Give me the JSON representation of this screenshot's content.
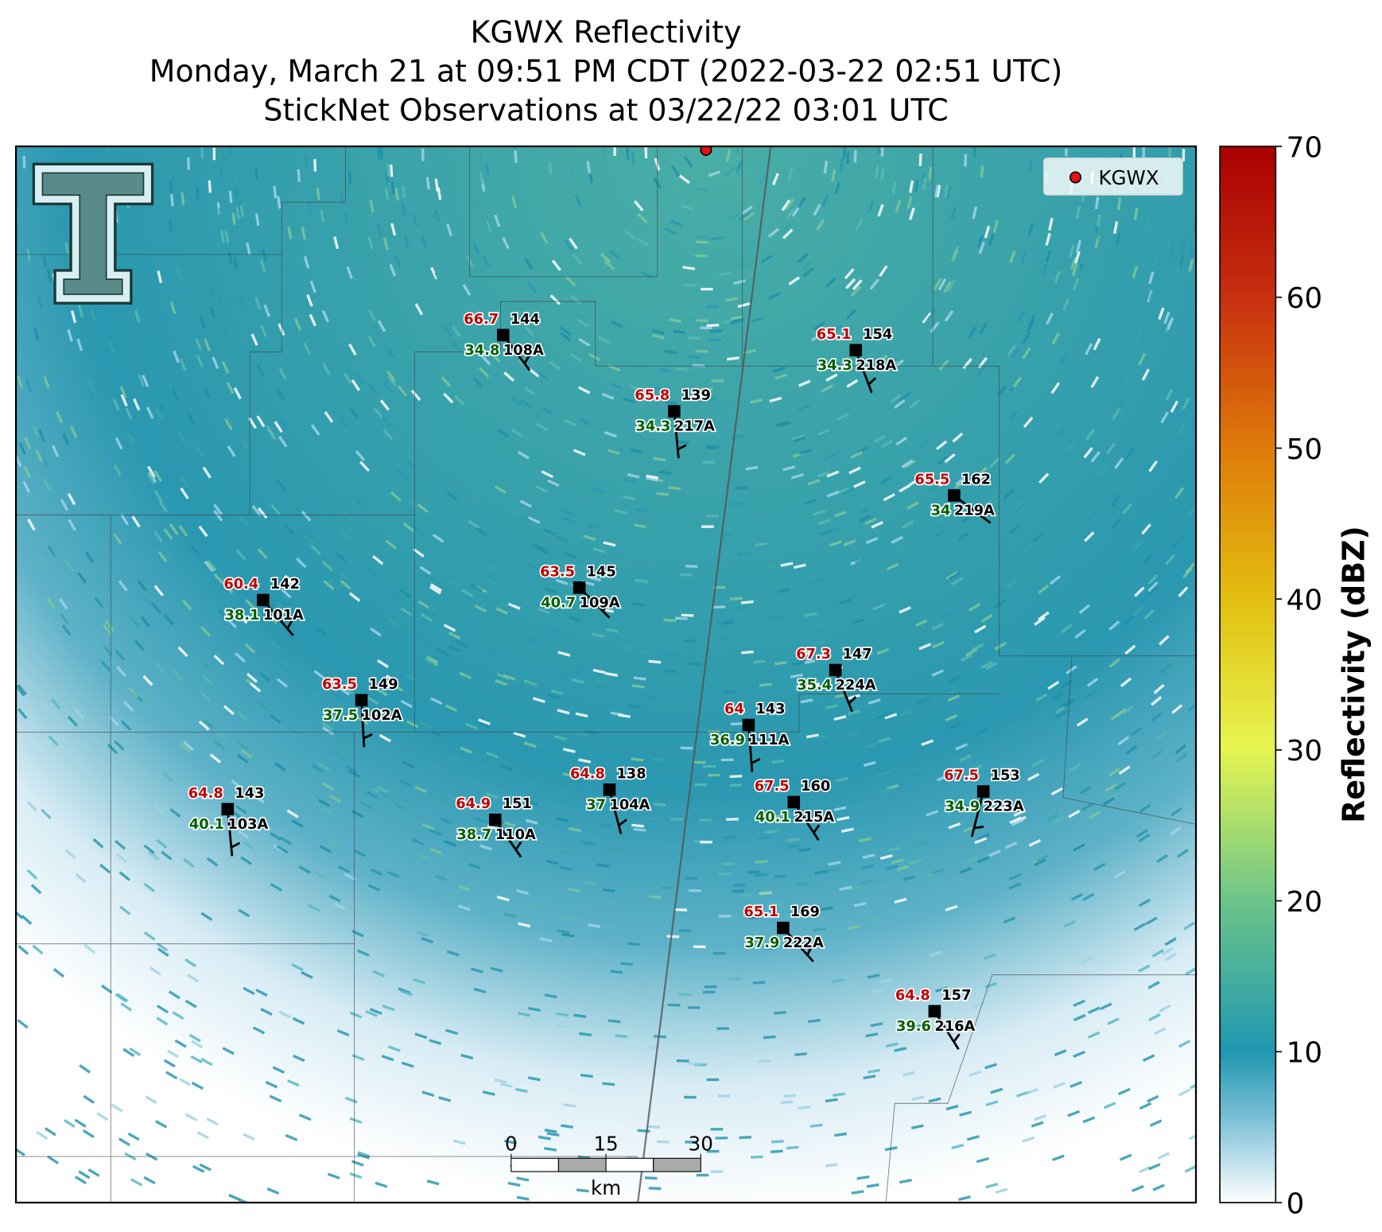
{
  "title_lines": [
    "KGWX Reflectivity",
    "Monday, March 21 at 09:51 PM CDT (2022-03-22 02:51 UTC)",
    "StickNet Observations at 03/22/22 03:01 UTC"
  ],
  "legend": {
    "label": "KGWX"
  },
  "stations": [
    {
      "id": "108A",
      "temperature": 66.7,
      "dewpoint": 34.8,
      "value": 144
    },
    {
      "id": "217A",
      "temperature": 65.8,
      "dewpoint": 34.3,
      "value": 139
    },
    {
      "id": "218A",
      "temperature": 65.1,
      "dewpoint": 34.3,
      "value": 154
    },
    {
      "id": "219A",
      "temperature": 65.5,
      "dewpoint": 34.0,
      "value": 162
    },
    {
      "id": "109A",
      "temperature": 63.5,
      "dewpoint": 40.7,
      "value": 145
    },
    {
      "id": "101A",
      "temperature": 60.4,
      "dewpoint": 38.1,
      "value": 142
    },
    {
      "id": "224A",
      "temperature": 67.3,
      "dewpoint": 35.4,
      "value": 147
    },
    {
      "id": "102A",
      "temperature": 63.5,
      "dewpoint": 37.5,
      "value": 149
    },
    {
      "id": "111A",
      "temperature": 64.0,
      "dewpoint": 36.9,
      "value": 143
    },
    {
      "id": "104A",
      "temperature": 64.8,
      "dewpoint": 37.0,
      "value": 138
    },
    {
      "id": "215A",
      "temperature": 67.5,
      "dewpoint": 40.1,
      "value": 160
    },
    {
      "id": "223A",
      "temperature": 67.5,
      "dewpoint": 34.9,
      "value": 153
    },
    {
      "id": "103A",
      "temperature": 64.8,
      "dewpoint": 40.1,
      "value": 143
    },
    {
      "id": "110A",
      "temperature": 64.9,
      "dewpoint": 38.7,
      "value": 151
    },
    {
      "id": "222A",
      "temperature": 65.1,
      "dewpoint": 37.9,
      "value": 169
    },
    {
      "id": "216A",
      "temperature": 64.8,
      "dewpoint": 39.6,
      "value": 157
    }
  ],
  "colorbar": {
    "label": "Reflectivity (dBZ)",
    "lim": [
      0,
      70
    ],
    "ticks": [
      0,
      10,
      20,
      30,
      40,
      50,
      60,
      70
    ]
  },
  "scale_bar": {
    "ticks": [
      0,
      15,
      30
    ],
    "unit": "km"
  }
}
